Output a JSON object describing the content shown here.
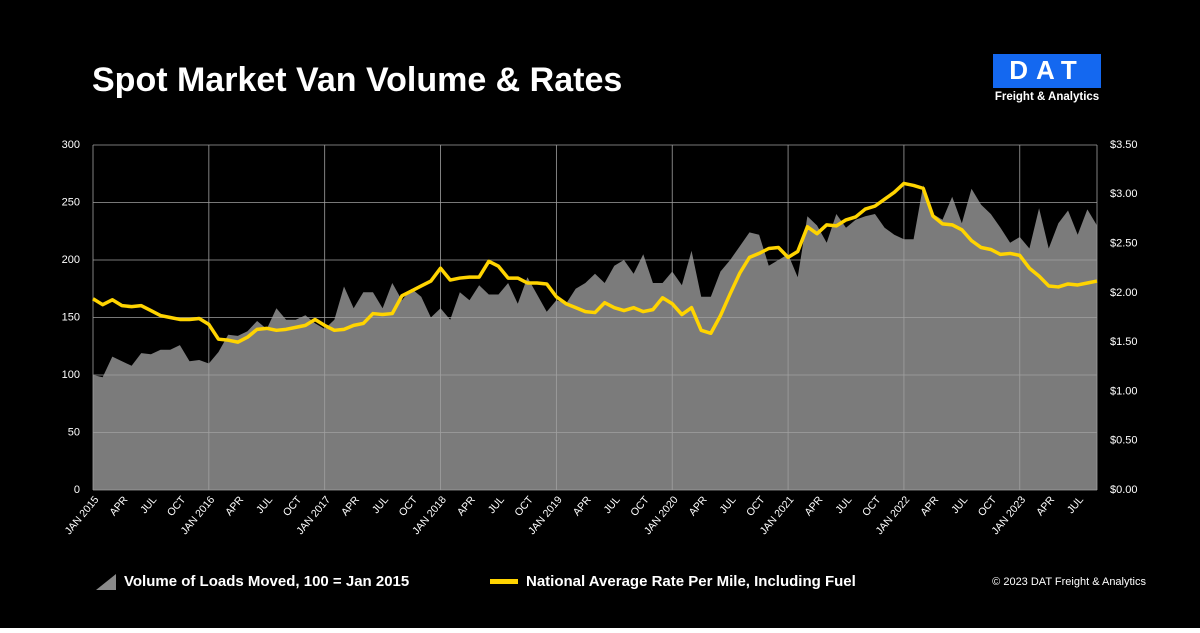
{
  "chart_data": {
    "type": "area-line",
    "title": "Spot Market Van Volume & Rates",
    "logo": "DAT",
    "logo_subtitle": "Freight & Analytics",
    "copyright": "© 2023 DAT Freight & Analytics",
    "categories": [
      "JAN 2015",
      null,
      null,
      "APR",
      null,
      null,
      "JUL",
      null,
      null,
      "OCT",
      null,
      null,
      "JAN 2016",
      null,
      null,
      "APR",
      null,
      null,
      "JUL",
      null,
      null,
      "OCT",
      null,
      null,
      "JAN 2017",
      null,
      null,
      "APR",
      null,
      null,
      "JUL",
      null,
      null,
      "OCT",
      null,
      null,
      "JAN 2018",
      null,
      null,
      "APR",
      null,
      null,
      "JUL",
      null,
      null,
      "OCT",
      null,
      null,
      "JAN 2019",
      null,
      null,
      "APR",
      null,
      null,
      "JUL",
      null,
      null,
      "OCT",
      null,
      null,
      "JAN 2020",
      null,
      null,
      "APR",
      null,
      null,
      "JUL",
      null,
      null,
      "OCT",
      null,
      null,
      "JAN 2021",
      null,
      null,
      "APR",
      null,
      null,
      "JUL",
      null,
      null,
      "OCT",
      null,
      null,
      "JAN 2022",
      null,
      null,
      "APR",
      null,
      null,
      "JUL",
      null,
      null,
      "OCT",
      null,
      null,
      "JAN 2023",
      null,
      null,
      "APR",
      null,
      null,
      "JUL",
      null,
      null
    ],
    "series": [
      {
        "name": "Volume of Loads Moved, 100 = Jan 2015",
        "color": "#7b7b7b",
        "axis": "y",
        "values": [
          100,
          98,
          116,
          112,
          108,
          119,
          118,
          122,
          122,
          126,
          112,
          113,
          110,
          120,
          135,
          134,
          138,
          147,
          140,
          158,
          148,
          148,
          152,
          145,
          140,
          148,
          177,
          158,
          172,
          172,
          158,
          180,
          165,
          175,
          168,
          150,
          158,
          148,
          172,
          165,
          178,
          170,
          170,
          180,
          162,
          185,
          170,
          155,
          165,
          162,
          175,
          180,
          188,
          180,
          195,
          200,
          188,
          205,
          180,
          180,
          190,
          178,
          208,
          168,
          168,
          190,
          200,
          212,
          224,
          222,
          195,
          200,
          205,
          185,
          238,
          230,
          215,
          240,
          228,
          235,
          238,
          240,
          228,
          222,
          218,
          218,
          265,
          240,
          235,
          255,
          232,
          262,
          248,
          240,
          228,
          215,
          220,
          210,
          245,
          210,
          232,
          243,
          222,
          244,
          230
        ]
      },
      {
        "name": "National Average Rate Per Mile, Including Fuel",
        "color": "#ffd400",
        "axis": "y2",
        "values": [
          1.94,
          1.88,
          1.93,
          1.87,
          1.86,
          1.87,
          1.82,
          1.77,
          1.75,
          1.73,
          1.73,
          1.74,
          1.68,
          1.53,
          1.52,
          1.5,
          1.55,
          1.63,
          1.64,
          1.62,
          1.63,
          1.65,
          1.67,
          1.73,
          1.67,
          1.62,
          1.63,
          1.67,
          1.69,
          1.79,
          1.78,
          1.79,
          1.97,
          2.02,
          2.07,
          2.12,
          2.25,
          2.13,
          2.15,
          2.16,
          2.16,
          2.32,
          2.27,
          2.15,
          2.15,
          2.1,
          2.1,
          2.09,
          1.96,
          1.89,
          1.85,
          1.81,
          1.8,
          1.9,
          1.85,
          1.82,
          1.85,
          1.81,
          1.83,
          1.95,
          1.89,
          1.78,
          1.85,
          1.62,
          1.59,
          1.77,
          1.99,
          2.2,
          2.36,
          2.4,
          2.45,
          2.46,
          2.36,
          2.42,
          2.67,
          2.6,
          2.69,
          2.68,
          2.74,
          2.77,
          2.85,
          2.88,
          2.95,
          3.02,
          3.11,
          3.09,
          3.06,
          2.78,
          2.7,
          2.69,
          2.64,
          2.53,
          2.46,
          2.44,
          2.39,
          2.4,
          2.38,
          2.25,
          2.17,
          2.07,
          2.06,
          2.09,
          2.08,
          2.1,
          2.12
        ]
      }
    ],
    "ylim": [
      0,
      300
    ],
    "yticks": [
      0,
      50,
      100,
      150,
      200,
      250,
      300
    ],
    "y2lim": [
      0,
      3.5
    ],
    "y2ticks": [
      {
        "value": 0,
        "label": "$0.00"
      },
      {
        "value": 0.5,
        "label": "$0.50"
      },
      {
        "value": 1,
        "label": "$1.00"
      },
      {
        "value": 1.5,
        "label": "$1.50"
      },
      {
        "value": 2,
        "label": "$2.00"
      },
      {
        "value": 2.5,
        "label": "$2.50"
      },
      {
        "value": 3,
        "label": "$3.00"
      },
      {
        "value": 3.5,
        "label": "$3.50"
      }
    ],
    "grid": true
  }
}
